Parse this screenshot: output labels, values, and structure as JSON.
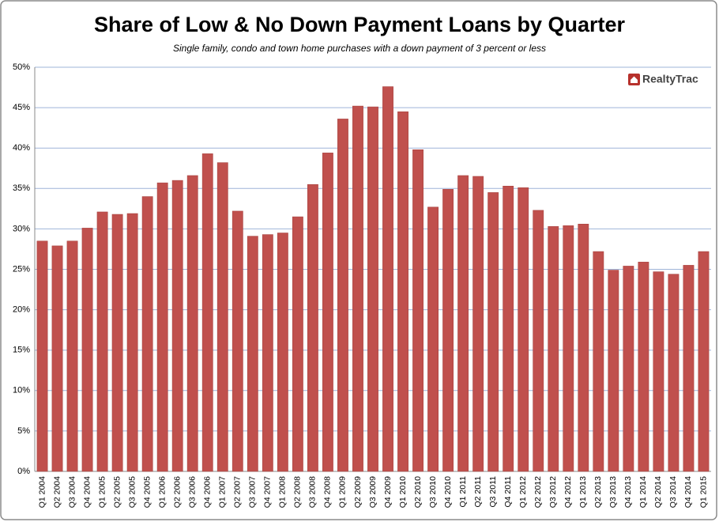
{
  "chart_data": {
    "type": "bar",
    "title": "Share of Low & No Down Payment Loans by Quarter",
    "subtitle": "Single family, condo and town home purchases with a down payment of 3 percent or less",
    "logo_text": "RealtyTrac",
    "categories": [
      "Q1 2004",
      "Q2 2004",
      "Q3 2004",
      "Q4 2004",
      "Q1 2005",
      "Q2 2005",
      "Q3 2005",
      "Q4 2005",
      "Q1 2006",
      "Q2 2006",
      "Q3 2006",
      "Q4 2006",
      "Q1 2007",
      "Q2 2007",
      "Q3 2007",
      "Q4 2007",
      "Q1 2008",
      "Q2 2008",
      "Q3 2008",
      "Q4 2008",
      "Q1 2009",
      "Q2 2009",
      "Q3 2009",
      "Q4 2009",
      "Q1 2010",
      "Q2 2010",
      "Q3 2010",
      "Q4 2010",
      "Q1 2011",
      "Q2 2011",
      "Q3 2011",
      "Q4 2011",
      "Q1 2012",
      "Q2 2012",
      "Q3 2012",
      "Q4 2012",
      "Q1 2013",
      "Q2 2013",
      "Q3 2013",
      "Q4 2013",
      "Q1 2014",
      "Q2 2014",
      "Q3 2014",
      "Q4 2014",
      "Q1 2015"
    ],
    "values": [
      28.5,
      27.9,
      28.5,
      30.1,
      32.1,
      31.8,
      31.9,
      34.0,
      35.7,
      36.0,
      36.6,
      39.3,
      38.2,
      32.2,
      29.1,
      29.3,
      29.5,
      31.5,
      35.5,
      39.4,
      43.6,
      45.2,
      45.1,
      47.6,
      44.5,
      39.8,
      32.7,
      34.9,
      36.6,
      36.5,
      34.5,
      35.3,
      35.1,
      32.3,
      30.3,
      30.4,
      30.6,
      27.2,
      24.9,
      25.4,
      25.9,
      24.7,
      24.4,
      25.5,
      27.2
    ],
    "color": "#c0504d",
    "ylim": [
      0,
      50
    ],
    "yticks": [
      {
        "value": 0,
        "label": "0%"
      },
      {
        "value": 5,
        "label": "5%"
      },
      {
        "value": 10,
        "label": "10%"
      },
      {
        "value": 15,
        "label": "15%"
      },
      {
        "value": 20,
        "label": "20%"
      },
      {
        "value": 25,
        "label": "25%"
      },
      {
        "value": 30,
        "label": "30%"
      },
      {
        "value": 35,
        "label": "35%"
      },
      {
        "value": 40,
        "label": "40%"
      },
      {
        "value": 45,
        "label": "45%"
      },
      {
        "value": 50,
        "label": "50%"
      }
    ],
    "grid": true
  }
}
